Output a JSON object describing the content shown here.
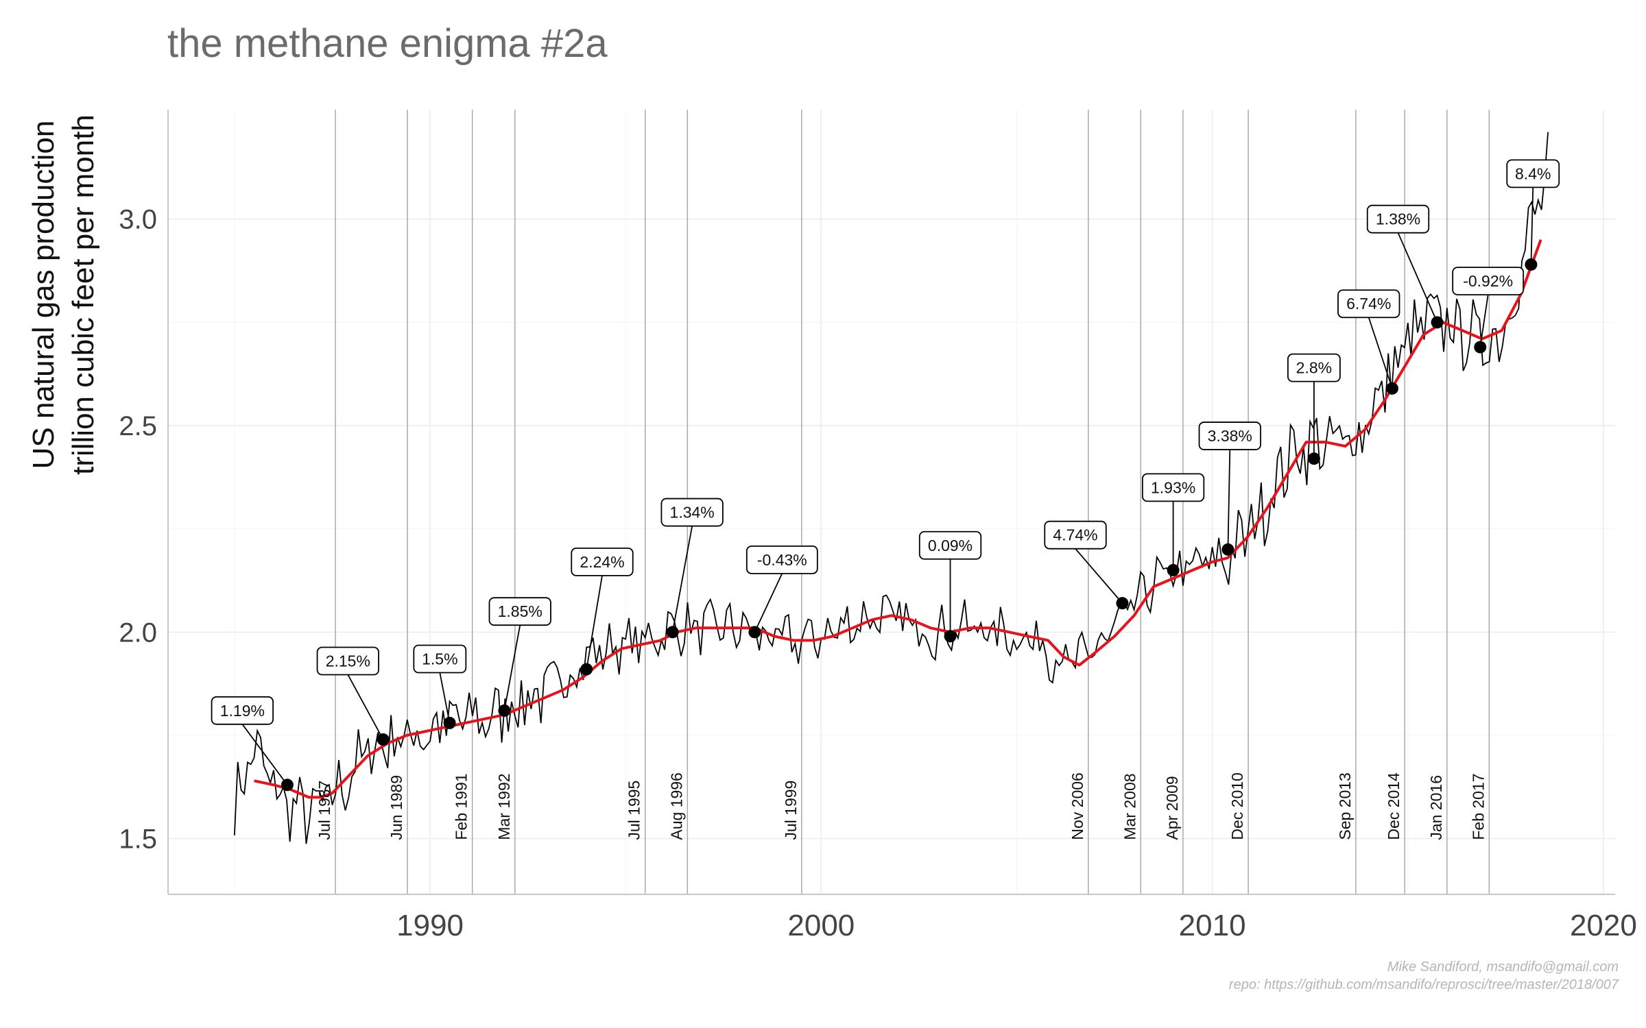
{
  "chart_data": {
    "type": "line",
    "title": "the methane enigma #2a",
    "ylabel_line1": "US natural gas production",
    "ylabel_line2": "trillion cubic feet per month",
    "xlabel": "",
    "xlim": [
      1983.3,
      2020.3
    ],
    "ylim": [
      1.365,
      3.265
    ],
    "xticks": [
      1990,
      2000,
      2010,
      2020
    ],
    "yticks": [
      1.5,
      2.0,
      2.5,
      3.0
    ],
    "ytick_labels": [
      "1.5",
      "2.0",
      "2.5",
      "3.0"
    ],
    "grid": true,
    "series": [
      {
        "kind": "monthly",
        "color": "#000000",
        "anchors": [
          [
            1985.0,
            1.58
          ],
          [
            1985.5,
            1.72
          ],
          [
            1986.0,
            1.62
          ],
          [
            1986.5,
            1.57
          ],
          [
            1987.0,
            1.56
          ],
          [
            1987.5,
            1.6
          ],
          [
            1988.0,
            1.66
          ],
          [
            1988.5,
            1.72
          ],
          [
            1989.0,
            1.74
          ],
          [
            1989.5,
            1.75
          ],
          [
            1990.0,
            1.76
          ],
          [
            1990.5,
            1.78
          ],
          [
            1991.0,
            1.79
          ],
          [
            1991.5,
            1.79
          ],
          [
            1992.0,
            1.82
          ],
          [
            1992.5,
            1.84
          ],
          [
            1993.0,
            1.86
          ],
          [
            1993.5,
            1.89
          ],
          [
            1994.0,
            1.94
          ],
          [
            1994.5,
            1.96
          ],
          [
            1995.0,
            1.97
          ],
          [
            1995.5,
            1.98
          ],
          [
            1996.0,
            2.0
          ],
          [
            1996.5,
            2.01
          ],
          [
            1997.0,
            2.01
          ],
          [
            1997.5,
            2.01
          ],
          [
            1998.0,
            2.01
          ],
          [
            1998.5,
            1.99
          ],
          [
            1999.0,
            1.98
          ],
          [
            1999.5,
            1.98
          ],
          [
            2000.0,
            1.99
          ],
          [
            2000.5,
            2.01
          ],
          [
            2001.0,
            2.03
          ],
          [
            2001.5,
            2.04
          ],
          [
            2002.0,
            2.03
          ],
          [
            2002.5,
            2.01
          ],
          [
            2003.0,
            2.0
          ],
          [
            2003.5,
            2.01
          ],
          [
            2004.0,
            2.01
          ],
          [
            2004.5,
            2.0
          ],
          [
            2005.0,
            1.99
          ],
          [
            2005.5,
            1.98
          ],
          [
            2006.0,
            1.94
          ],
          [
            2006.5,
            1.92
          ],
          [
            2007.0,
            1.96
          ],
          [
            2007.5,
            2.01
          ],
          [
            2008.0,
            2.06
          ],
          [
            2008.5,
            2.12
          ],
          [
            2009.0,
            2.14
          ],
          [
            2009.5,
            2.16
          ],
          [
            2010.0,
            2.17
          ],
          [
            2010.5,
            2.19
          ],
          [
            2011.0,
            2.25
          ],
          [
            2011.5,
            2.34
          ],
          [
            2012.0,
            2.43
          ],
          [
            2012.5,
            2.46
          ],
          [
            2013.0,
            2.45
          ],
          [
            2013.5,
            2.46
          ],
          [
            2014.0,
            2.52
          ],
          [
            2014.5,
            2.61
          ],
          [
            2015.0,
            2.7
          ],
          [
            2015.5,
            2.75
          ],
          [
            2016.0,
            2.75
          ],
          [
            2016.5,
            2.72
          ],
          [
            2017.0,
            2.7
          ],
          [
            2017.5,
            2.75
          ],
          [
            2018.0,
            2.93
          ],
          [
            2018.6,
            3.12
          ]
        ]
      },
      {
        "kind": "moving-average",
        "color": "#e8131a",
        "segments": [
          [
            [
              1985.5,
              1.64
            ],
            [
              1986.0,
              1.63
            ],
            [
              1986.4,
              1.62
            ],
            [
              1986.9,
              1.6
            ],
            [
              1987.2,
              1.6
            ],
            [
              1987.5,
              1.61
            ],
            [
              1987.9,
              1.65
            ],
            [
              1988.4,
              1.7
            ],
            [
              1988.9,
              1.73
            ],
            [
              1989.4,
              1.75
            ],
            [
              1989.9,
              1.76
            ],
            [
              1990.4,
              1.77
            ],
            [
              1990.9,
              1.78
            ],
            [
              1991.4,
              1.79
            ],
            [
              1991.9,
              1.8
            ],
            [
              1992.4,
              1.82
            ],
            [
              1992.9,
              1.84
            ],
            [
              1993.4,
              1.86
            ],
            [
              1993.9,
              1.89
            ],
            [
              1994.4,
              1.93
            ],
            [
              1994.9,
              1.96
            ],
            [
              1995.4,
              1.97
            ],
            [
              1995.9,
              1.98
            ],
            [
              1996.3,
              2.0
            ],
            [
              1996.8,
              2.01
            ],
            [
              1997.3,
              2.01
            ],
            [
              1997.8,
              2.01
            ],
            [
              1998.3,
              2.01
            ],
            [
              1998.8,
              1.99
            ],
            [
              1999.3,
              1.98
            ],
            [
              1999.8,
              1.98
            ],
            [
              2000.3,
              1.99
            ],
            [
              2000.8,
              2.01
            ],
            [
              2001.3,
              2.03
            ],
            [
              2001.8,
              2.04
            ],
            [
              2002.3,
              2.03
            ],
            [
              2002.8,
              2.01
            ],
            [
              2003.3,
              2.0
            ],
            [
              2003.8,
              2.01
            ],
            [
              2004.3,
              2.01
            ],
            [
              2004.8,
              2.0
            ],
            [
              2005.3,
              1.99
            ],
            [
              2005.8,
              1.98
            ],
            [
              2006.2,
              1.94
            ],
            [
              2006.6,
              1.92
            ],
            [
              2007.0,
              1.95
            ],
            [
              2007.5,
              1.99
            ],
            [
              2008.0,
              2.04
            ],
            [
              2008.5,
              2.11
            ],
            [
              2009.0,
              2.13
            ],
            [
              2009.5,
              2.15
            ],
            [
              2010.0,
              2.17
            ],
            [
              2010.4,
              2.18
            ],
            [
              2010.9,
              2.23
            ],
            [
              2011.4,
              2.3
            ],
            [
              2011.9,
              2.38
            ],
            [
              2012.4,
              2.46
            ],
            [
              2012.9,
              2.46
            ],
            [
              2013.4,
              2.45
            ],
            [
              2013.9,
              2.49
            ],
            [
              2014.4,
              2.56
            ],
            [
              2014.9,
              2.64
            ],
            [
              2015.4,
              2.72
            ],
            [
              2015.9,
              2.75
            ],
            [
              2016.4,
              2.73
            ],
            [
              2016.9,
              2.71
            ],
            [
              2017.4,
              2.73
            ],
            [
              2017.9,
              2.82
            ],
            [
              2018.4,
              2.95
            ]
          ]
        ]
      }
    ],
    "breakpoints": [
      {
        "x": 1987.58,
        "label": "Jul 1987"
      },
      {
        "x": 1989.42,
        "label": "Jun 1989"
      },
      {
        "x": 1991.08,
        "label": "Feb 1991"
      },
      {
        "x": 1992.17,
        "label": "Mar 1992"
      },
      {
        "x": 1995.5,
        "label": "Jul 1995"
      },
      {
        "x": 1996.58,
        "label": "Aug 1996"
      },
      {
        "x": 1999.5,
        "label": "Jul 1999"
      },
      {
        "x": 2006.83,
        "label": "Nov 2006"
      },
      {
        "x": 2008.17,
        "label": "Mar 2008"
      },
      {
        "x": 2009.25,
        "label": "Apr 2009"
      },
      {
        "x": 2010.92,
        "label": "Dec 2010"
      },
      {
        "x": 2013.67,
        "label": "Sep 2013"
      },
      {
        "x": 2014.92,
        "label": "Dec 2014"
      },
      {
        "x": 2016.0,
        "label": "Jan 2016"
      },
      {
        "x": 2017.08,
        "label": "Feb 2017"
      }
    ],
    "annotations": [
      {
        "x": 1986.35,
        "y": 1.63,
        "label": "1.19%",
        "lx": 1985.2,
        "ly": 1.81
      },
      {
        "x": 1988.8,
        "y": 1.74,
        "label": "2.15%",
        "lx": 1987.9,
        "ly": 1.93
      },
      {
        "x": 1990.5,
        "y": 1.78,
        "label": "1.5%",
        "lx": 1990.25,
        "ly": 1.935
      },
      {
        "x": 1991.9,
        "y": 1.81,
        "label": "1.85%",
        "lx": 1992.3,
        "ly": 2.05
      },
      {
        "x": 1994.0,
        "y": 1.91,
        "label": "2.24%",
        "lx": 1994.4,
        "ly": 2.17
      },
      {
        "x": 1996.2,
        "y": 2.0,
        "label": "1.34%",
        "lx": 1996.7,
        "ly": 2.29
      },
      {
        "x": 1998.3,
        "y": 2.0,
        "label": "-0.43%",
        "lx": 1999.0,
        "ly": 2.175
      },
      {
        "x": 2003.3,
        "y": 1.99,
        "label": "0.09%",
        "lx": 2003.3,
        "ly": 2.21
      },
      {
        "x": 2007.7,
        "y": 2.07,
        "label": "4.74%",
        "lx": 2006.5,
        "ly": 2.235
      },
      {
        "x": 2009.0,
        "y": 2.15,
        "label": "1.93%",
        "lx": 2009.0,
        "ly": 2.35
      },
      {
        "x": 2010.4,
        "y": 2.2,
        "label": "3.38%",
        "lx": 2010.45,
        "ly": 2.475
      },
      {
        "x": 2012.6,
        "y": 2.42,
        "label": "2.8%",
        "lx": 2012.6,
        "ly": 2.64
      },
      {
        "x": 2014.6,
        "y": 2.59,
        "label": "6.74%",
        "lx": 2014.0,
        "ly": 2.795
      },
      {
        "x": 2015.75,
        "y": 2.75,
        "label": "1.38%",
        "lx": 2014.75,
        "ly": 3.0
      },
      {
        "x": 2016.85,
        "y": 2.69,
        "label": "-0.92%",
        "lx": 2017.05,
        "ly": 2.85
      },
      {
        "x": 2018.15,
        "y": 2.89,
        "label": "8.4%",
        "lx": 2018.2,
        "ly": 3.11
      }
    ]
  },
  "caption": {
    "line1": "Mike Sandiford, msandifo@gmail.com",
    "line2": "repo: https://github.com/msandifo/reprosci/tree/master/2018/007"
  }
}
